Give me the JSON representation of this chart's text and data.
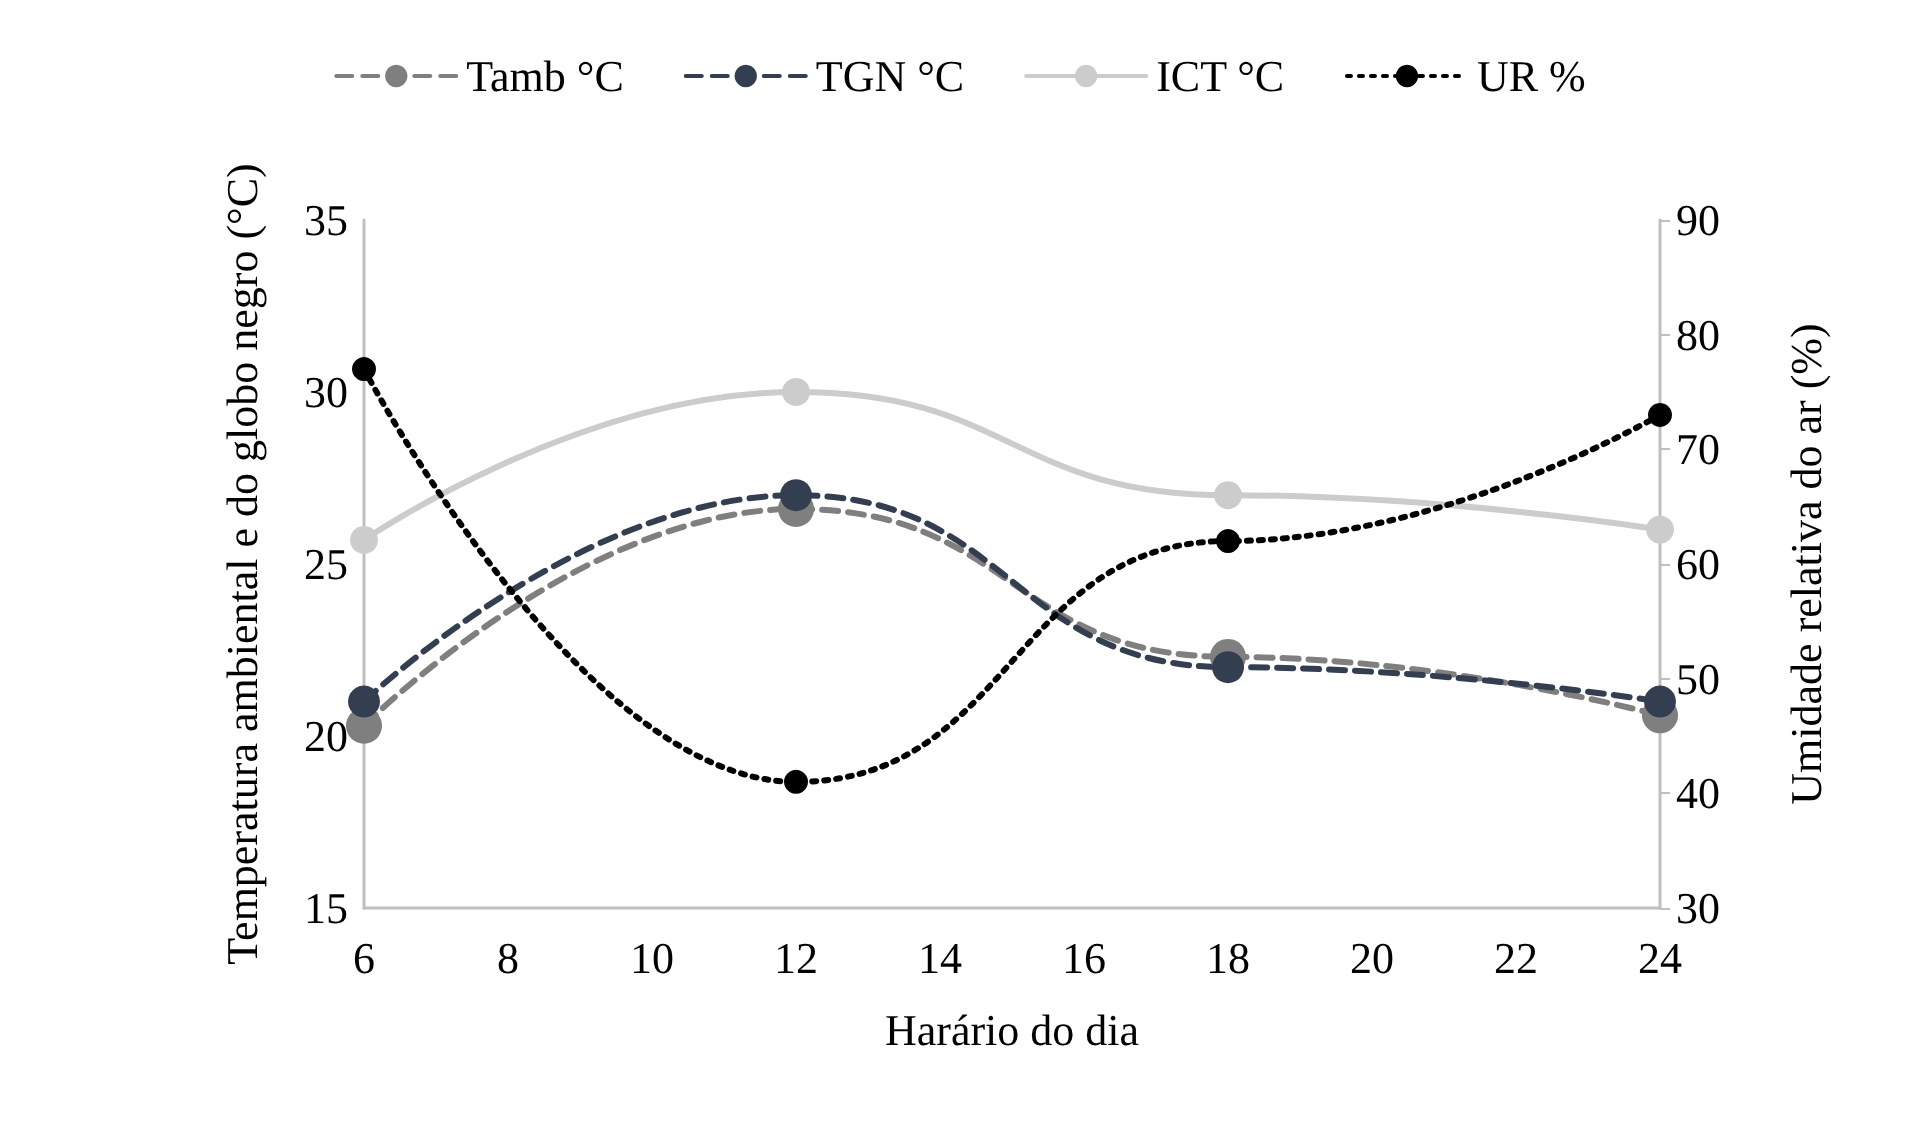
{
  "chart_data": {
    "type": "line",
    "xlabel": "Harário do dia",
    "ylabel": "Temperatura ambiental e do globo negro (°C)",
    "y2label": "Umidade relativa do ar (%)",
    "x": [
      6,
      12,
      18,
      24
    ],
    "xlim": [
      6,
      24
    ],
    "xticks": [
      6,
      8,
      10,
      12,
      14,
      16,
      18,
      20,
      22,
      24
    ],
    "ylim": [
      15,
      35
    ],
    "yticks": [
      15,
      20,
      25,
      30,
      35
    ],
    "y2lim": [
      30,
      90
    ],
    "y2ticks": [
      30,
      40,
      50,
      60,
      70,
      80,
      90
    ],
    "grid": false,
    "legend": "top",
    "marker": "circle",
    "series": [
      {
        "name": "Tamb °C",
        "color": "#7f7f7f",
        "line_style": "dashed",
        "values": [
          20.3,
          26.6,
          22.3,
          20.6
        ]
      },
      {
        "name": "TGN °C",
        "color": "#333f50",
        "line_style": "dashed",
        "values": [
          21.0,
          27.0,
          22.0,
          21.0
        ]
      },
      {
        "name": "ICT °C",
        "color": "#cccccc",
        "line_style": "solid",
        "values": [
          25.7,
          30.0,
          27.0,
          26.0
        ]
      },
      {
        "name": "UR %",
        "color": "#000000",
        "line_style": "dotted",
        "axis": "y2",
        "values": [
          77,
          41,
          62,
          73
        ]
      }
    ]
  }
}
